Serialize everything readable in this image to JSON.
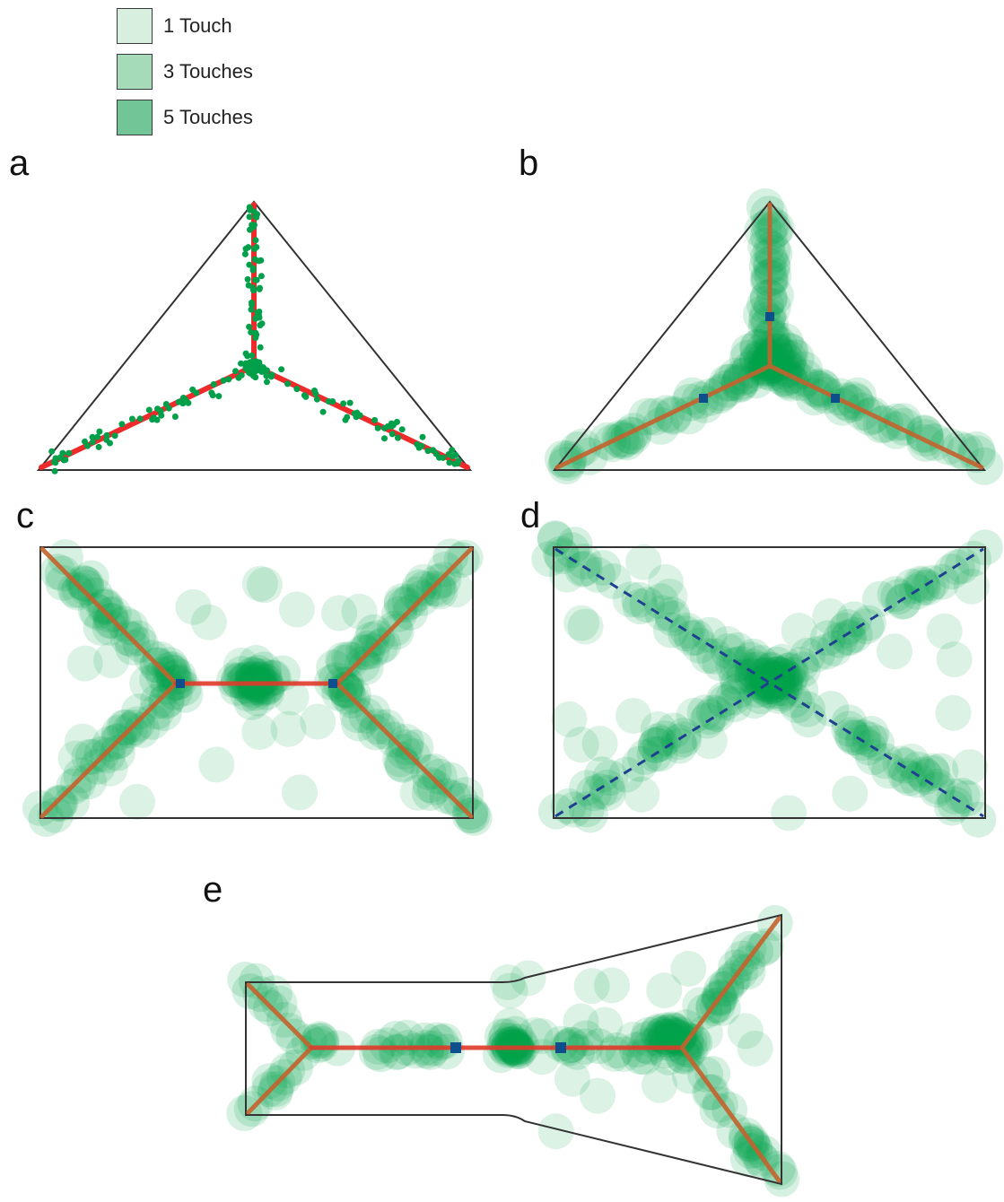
{
  "legend": {
    "items": [
      {
        "label": "1 Touch",
        "color": "#d8efe0"
      },
      {
        "label": "3 Touches",
        "color": "#a6dbb9"
      },
      {
        "label": "5 Touches",
        "color": "#72c597"
      }
    ]
  },
  "panels": {
    "a": {
      "label": "a"
    },
    "b": {
      "label": "b"
    },
    "c": {
      "label": "c"
    },
    "d": {
      "label": "d"
    },
    "e": {
      "label": "e"
    }
  },
  "colors": {
    "touch": "#00a04a",
    "skeleton": "#ee2a2a",
    "skeleton_blend": "#c4632d",
    "node": "#0d4f8c",
    "outline": "#333333",
    "dashed": "#1f3f8f"
  }
}
